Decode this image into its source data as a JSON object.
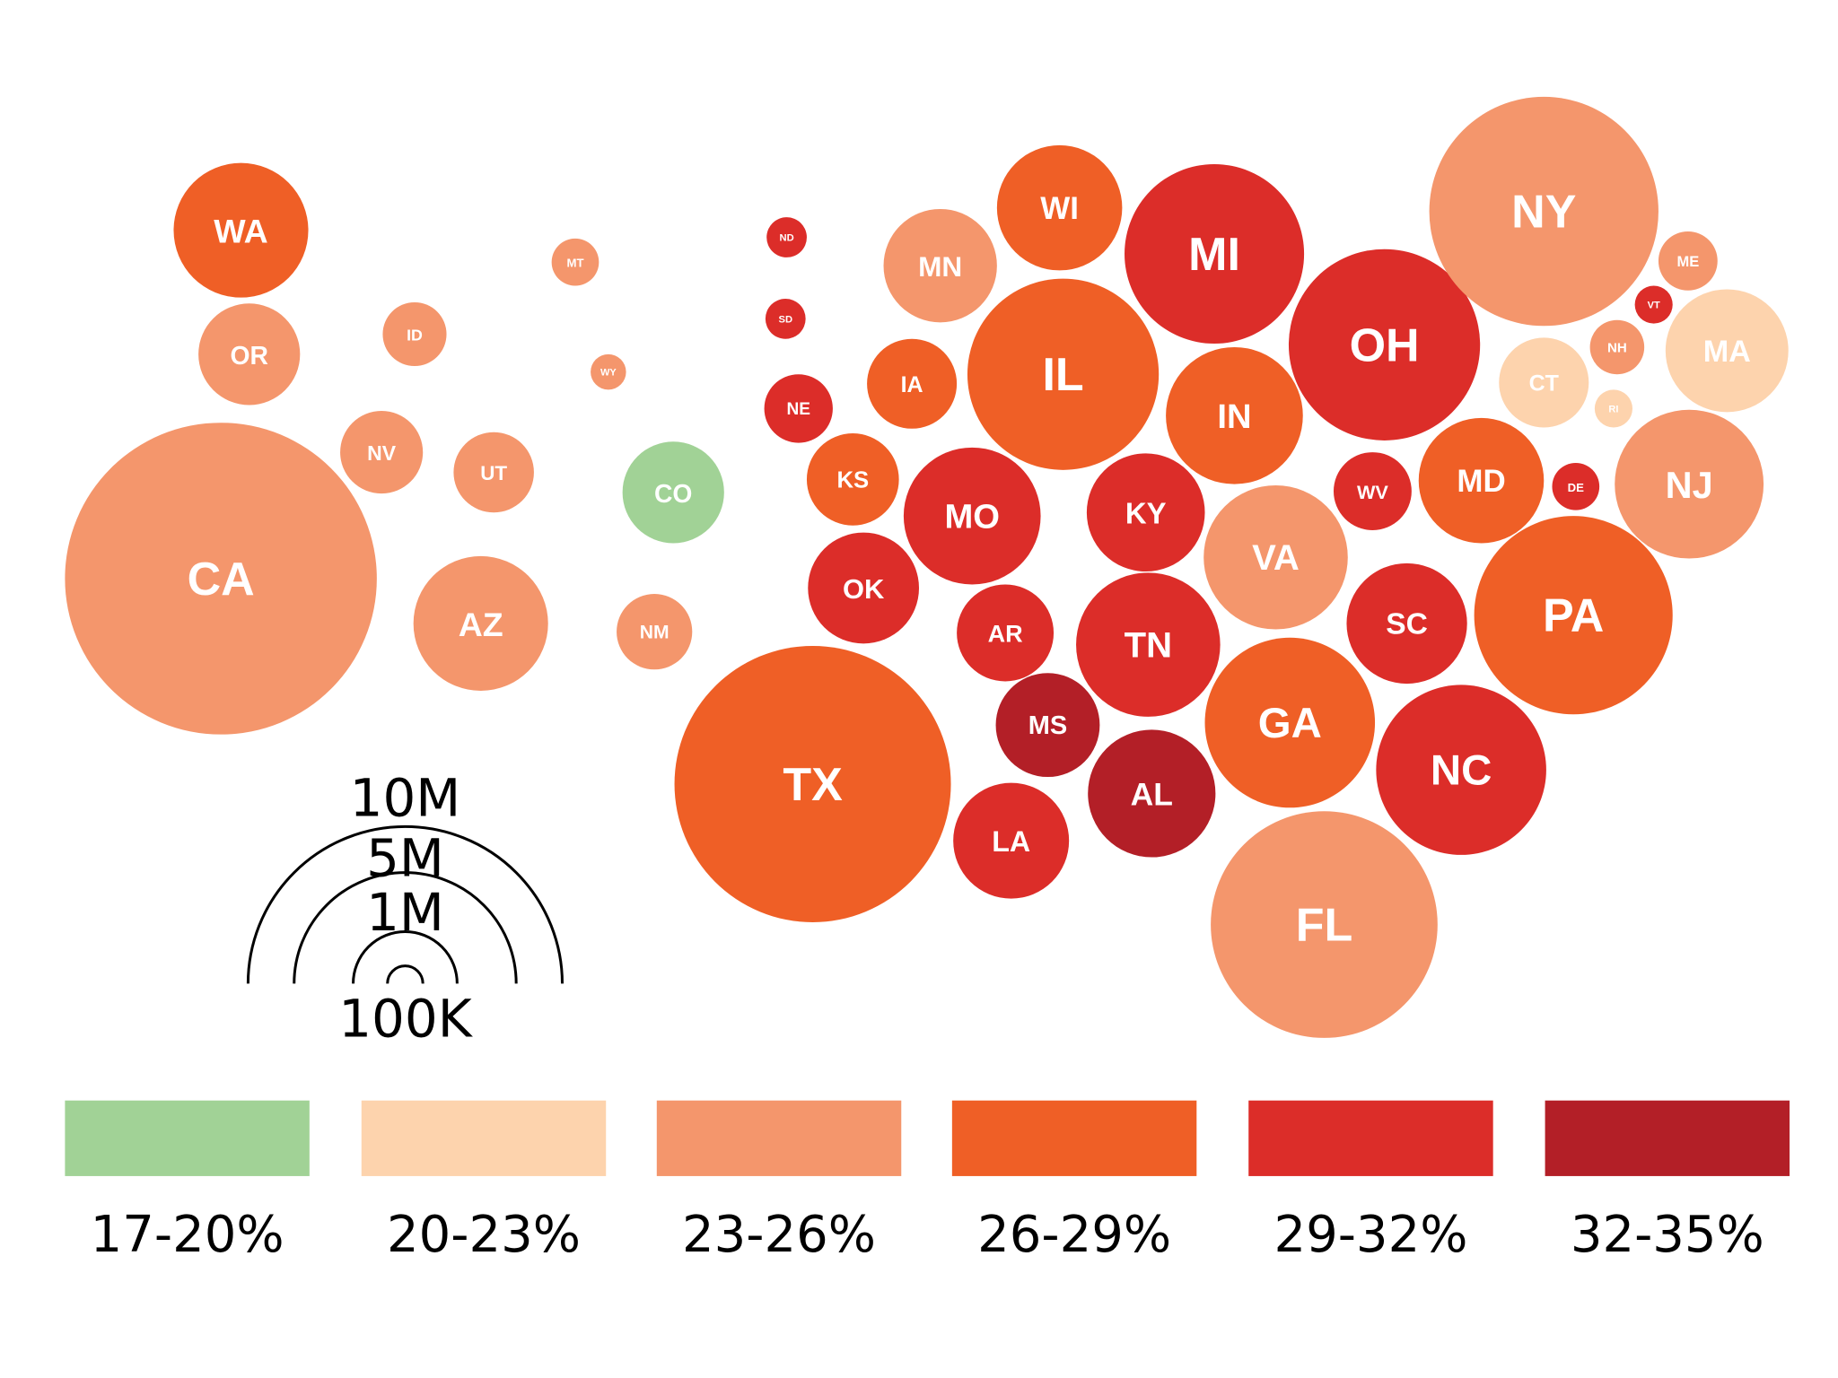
{
  "colors": {
    "17-20%": "#a1d296",
    "20-23%": "#fdd3ad",
    "23-26%": "#f4966c",
    "26-29%": "#ef5f26",
    "29-32%": "#dc2d29",
    "32-35%": "#b31f27"
  },
  "size_legend": {
    "labels": [
      "10M",
      "5M",
      "1M",
      "100K"
    ],
    "values": [
      10000000,
      5000000,
      1000000,
      100000
    ]
  },
  "color_legend": {
    "items": [
      {
        "label": "17-20%",
        "bin": "17-20%"
      },
      {
        "label": "20-23%",
        "bin": "20-23%"
      },
      {
        "label": "23-26%",
        "bin": "23-26%"
      },
      {
        "label": "26-29%",
        "bin": "26-29%"
      },
      {
        "label": "29-32%",
        "bin": "29-32%"
      },
      {
        "label": "32-35%",
        "bin": "32-35%"
      }
    ]
  },
  "chart_data": {
    "type": "bubble-map",
    "states": [
      {
        "abbr": "WA",
        "bin": "26-29%"
      },
      {
        "abbr": "OR",
        "bin": "23-26%"
      },
      {
        "abbr": "CA",
        "bin": "23-26%"
      },
      {
        "abbr": "ID",
        "bin": "23-26%"
      },
      {
        "abbr": "NV",
        "bin": "23-26%"
      },
      {
        "abbr": "UT",
        "bin": "23-26%"
      },
      {
        "abbr": "AZ",
        "bin": "23-26%"
      },
      {
        "abbr": "MT",
        "bin": "23-26%"
      },
      {
        "abbr": "WY",
        "bin": "23-26%"
      },
      {
        "abbr": "CO",
        "bin": "17-20%"
      },
      {
        "abbr": "NM",
        "bin": "23-26%"
      },
      {
        "abbr": "ND",
        "bin": "29-32%"
      },
      {
        "abbr": "SD",
        "bin": "29-32%"
      },
      {
        "abbr": "NE",
        "bin": "29-32%"
      },
      {
        "abbr": "KS",
        "bin": "26-29%"
      },
      {
        "abbr": "OK",
        "bin": "29-32%"
      },
      {
        "abbr": "TX",
        "bin": "26-29%"
      },
      {
        "abbr": "MN",
        "bin": "23-26%"
      },
      {
        "abbr": "IA",
        "bin": "26-29%"
      },
      {
        "abbr": "MO",
        "bin": "29-32%"
      },
      {
        "abbr": "AR",
        "bin": "29-32%"
      },
      {
        "abbr": "LA",
        "bin": "29-32%"
      },
      {
        "abbr": "WI",
        "bin": "26-29%"
      },
      {
        "abbr": "IL",
        "bin": "26-29%"
      },
      {
        "abbr": "MI",
        "bin": "29-32%"
      },
      {
        "abbr": "IN",
        "bin": "26-29%"
      },
      {
        "abbr": "OH",
        "bin": "29-32%"
      },
      {
        "abbr": "KY",
        "bin": "29-32%"
      },
      {
        "abbr": "TN",
        "bin": "29-32%"
      },
      {
        "abbr": "MS",
        "bin": "32-35%"
      },
      {
        "abbr": "AL",
        "bin": "32-35%"
      },
      {
        "abbr": "GA",
        "bin": "26-29%"
      },
      {
        "abbr": "FL",
        "bin": "23-26%"
      },
      {
        "abbr": "SC",
        "bin": "29-32%"
      },
      {
        "abbr": "NC",
        "bin": "29-32%"
      },
      {
        "abbr": "VA",
        "bin": "23-26%"
      },
      {
        "abbr": "WV",
        "bin": "29-32%"
      },
      {
        "abbr": "MD",
        "bin": "26-29%"
      },
      {
        "abbr": "DE",
        "bin": "29-32%"
      },
      {
        "abbr": "PA",
        "bin": "26-29%"
      },
      {
        "abbr": "NJ",
        "bin": "23-26%"
      },
      {
        "abbr": "NY",
        "bin": "23-26%"
      },
      {
        "abbr": "CT",
        "bin": "20-23%"
      },
      {
        "abbr": "RI",
        "bin": "20-23%"
      },
      {
        "abbr": "MA",
        "bin": "20-23%"
      },
      {
        "abbr": "VT",
        "bin": "29-32%"
      },
      {
        "abbr": "NH",
        "bin": "23-26%"
      },
      {
        "abbr": "ME",
        "bin": "23-26%"
      }
    ]
  }
}
